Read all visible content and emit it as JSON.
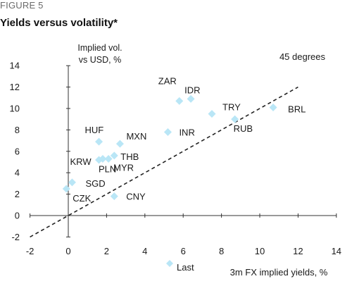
{
  "figure_label": "FIGURE 5",
  "chart_data": {
    "type": "scatter",
    "title": "Yields versus volatility*",
    "xlabel": "3m FX implied yields, %",
    "ylabel": "Implied vol. vs USD, %",
    "ylabel_lines": [
      "Implied vol.",
      "vs USD, %"
    ],
    "xlim": [
      -2,
      14
    ],
    "ylim": [
      -2,
      14
    ],
    "xticks": [
      -2,
      0,
      2,
      4,
      6,
      8,
      10,
      12,
      14
    ],
    "yticks": [
      -2,
      0,
      2,
      4,
      6,
      8,
      10,
      12,
      14
    ],
    "grid": false,
    "legend": {
      "placement": "bottom",
      "entries": [
        "Last"
      ]
    },
    "marker_color": "#b9e6f6",
    "reference_line": {
      "label": "45 degrees",
      "style": "dashed",
      "slope": 1,
      "intercept": 0
    },
    "series": [
      {
        "name": "Last",
        "points": [
          {
            "label": "ZAR",
            "x": 5.8,
            "y": 10.7
          },
          {
            "label": "IDR",
            "x": 6.4,
            "y": 10.9
          },
          {
            "label": "TRY",
            "x": 7.5,
            "y": 9.5
          },
          {
            "label": "BRL",
            "x": 10.7,
            "y": 10.1
          },
          {
            "label": "RUB",
            "x": 8.7,
            "y": 9.0
          },
          {
            "label": "INR",
            "x": 5.2,
            "y": 7.8
          },
          {
            "label": "HUF",
            "x": 1.6,
            "y": 6.9
          },
          {
            "label": "MXN",
            "x": 2.7,
            "y": 6.7
          },
          {
            "label": "THB",
            "x": 2.4,
            "y": 5.6
          },
          {
            "label": "KRW",
            "x": 1.6,
            "y": 5.2
          },
          {
            "label": "PLN",
            "x": 1.8,
            "y": 5.3
          },
          {
            "label": "MYR",
            "x": 2.1,
            "y": 5.3
          },
          {
            "label": "SGD",
            "x": 0.2,
            "y": 3.1
          },
          {
            "label": "CZK",
            "x": -0.1,
            "y": 2.5
          },
          {
            "label": "CNY",
            "x": 2.4,
            "y": 1.8
          }
        ]
      }
    ]
  }
}
